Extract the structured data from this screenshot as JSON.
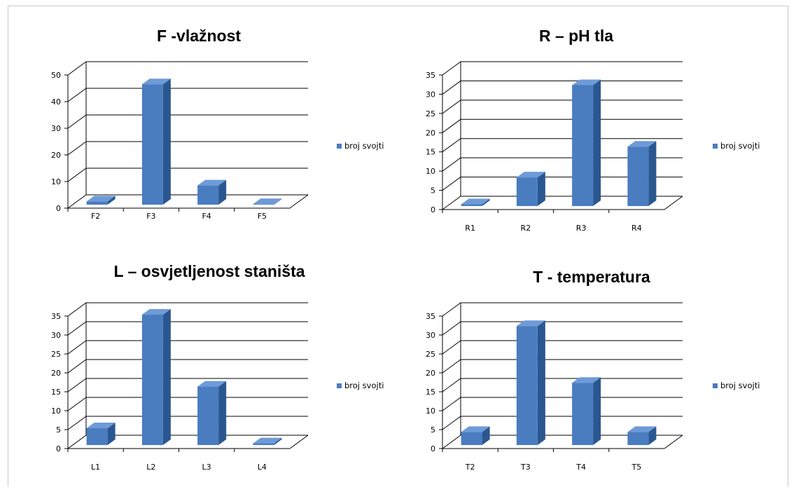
{
  "colors": {
    "bar_front": "#4a7cc0",
    "bar_top": "#6e9bd8",
    "bar_side": "#2b5790",
    "grid": "#000000",
    "legend_marker": "#4a7cc0"
  },
  "chart_data": [
    {
      "type": "bar",
      "title": "F -vlažnost",
      "categories": [
        "F2",
        "F3",
        "F4",
        "F5"
      ],
      "series": [
        {
          "name": "broj svojti",
          "values": [
            2,
            46,
            8,
            1
          ]
        }
      ],
      "ylim": [
        0,
        50
      ],
      "yticks": [
        "0",
        "10",
        "20",
        "30",
        "40",
        "50"
      ],
      "grid": true,
      "legend": "right"
    },
    {
      "type": "bar",
      "title": "R – pH tla",
      "categories": [
        "R1",
        "R2",
        "R3",
        "R4"
      ],
      "series": [
        {
          "name": "broj svojti",
          "values": [
            1,
            8,
            32,
            16
          ]
        }
      ],
      "ylim": [
        0,
        35
      ],
      "yticks": [
        "0",
        "5",
        "10",
        "15",
        "20",
        "25",
        "30",
        "35"
      ],
      "grid": true,
      "legend": "right"
    },
    {
      "type": "bar",
      "title": "L – osvjetljenost staništa",
      "categories": [
        "L1",
        "L2",
        "L3",
        "L4"
      ],
      "series": [
        {
          "name": "broj svojti",
          "values": [
            5,
            35,
            16,
            1
          ]
        }
      ],
      "ylim": [
        0,
        35
      ],
      "yticks": [
        "0",
        "5",
        "10",
        "15",
        "20",
        "25",
        "30",
        "35"
      ],
      "grid": true,
      "legend": "right"
    },
    {
      "type": "bar",
      "title": "T - temperatura",
      "categories": [
        "T2",
        "T3",
        "T4",
        "T5"
      ],
      "series": [
        {
          "name": "broj svojti",
          "values": [
            4,
            32,
            17,
            4
          ]
        }
      ],
      "ylim": [
        0,
        35
      ],
      "yticks": [
        "0",
        "5",
        "10",
        "15",
        "20",
        "25",
        "30",
        "35"
      ],
      "grid": true,
      "legend": "right"
    }
  ]
}
